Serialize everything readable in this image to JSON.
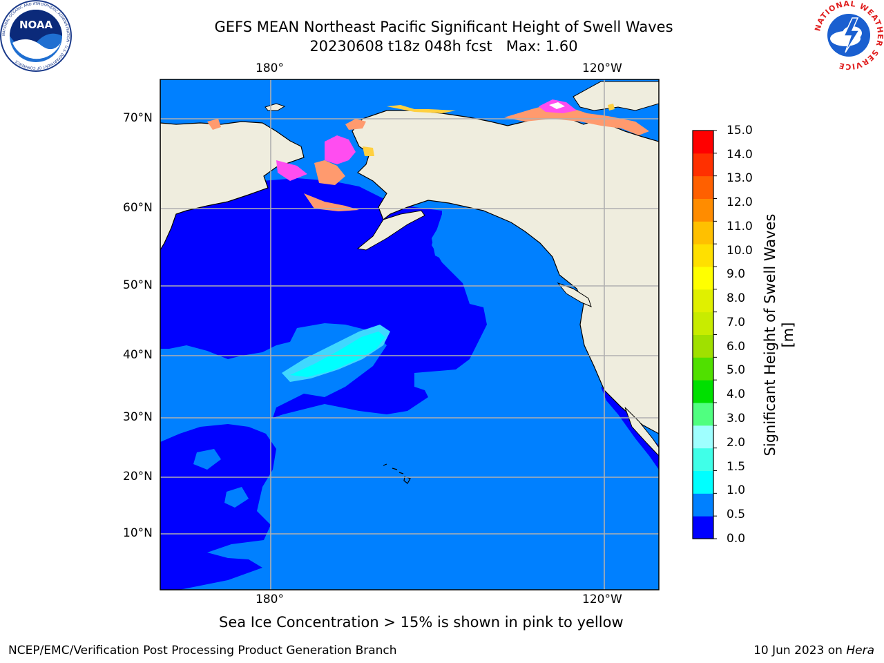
{
  "header": {
    "title_line1": "GEFS MEAN Northeast Pacific Significant Height of Swell Waves",
    "title_line2": "20230608 t18z 048h fcst   Max: 1.60"
  },
  "logos": {
    "left": "NOAA",
    "left_ring_text": "NATIONAL OCEANIC AND ATMOSPHERIC ADMINISTRATION · U.S. DEPARTMENT OF COMMERCE",
    "right_ring_text": "NATIONAL WEATHER SERVICE"
  },
  "map": {
    "lon_labels_top": [
      "180°",
      "120°W"
    ],
    "lon_labels_bottom": [
      "180°",
      "120°W"
    ],
    "lat_labels": [
      "70°N",
      "60°N",
      "50°N",
      "40°N",
      "30°N",
      "20°N",
      "10°N"
    ],
    "colors": {
      "land": "#efedde",
      "ocean_low": "#0000ff",
      "ocean_mid": "#0080ff",
      "swell_high": "#00ffff",
      "swell_edge": "#40d8ff",
      "sea_ice_pink": "#ff4df0",
      "sea_ice_orange": "#ff9a6e",
      "sea_ice_yellow": "#ffd040",
      "grid": "#b0b0b0"
    }
  },
  "colorbar": {
    "ticks": [
      "15.0",
      "14.0",
      "13.0",
      "12.0",
      "11.0",
      "10.0",
      "9.0",
      "8.0",
      "7.0",
      "6.0",
      "5.0",
      "4.0",
      "3.0",
      "2.0",
      "1.5",
      "1.0",
      "0.5",
      "0.0"
    ],
    "colors_bottom_to_top": [
      "#0000ff",
      "#0080ff",
      "#00ffff",
      "#40ffe8",
      "#9fffff",
      "#50ff80",
      "#00e000",
      "#50e000",
      "#a0e000",
      "#c8ec00",
      "#e0f000",
      "#ffff00",
      "#ffe000",
      "#ffc000",
      "#ff8c00",
      "#ff6000",
      "#ff3000",
      "#ff0000"
    ],
    "label": "Significant Height of Swell Waves [m]"
  },
  "footer": {
    "sea_ice_note": "Sea Ice Concentration > 15% is shown in pink to yellow",
    "left": "NCEP/EMC/Verification Post Processing Product Generation Branch",
    "right_date": "10 Jun 2023 on ",
    "right_host": "Hera"
  }
}
